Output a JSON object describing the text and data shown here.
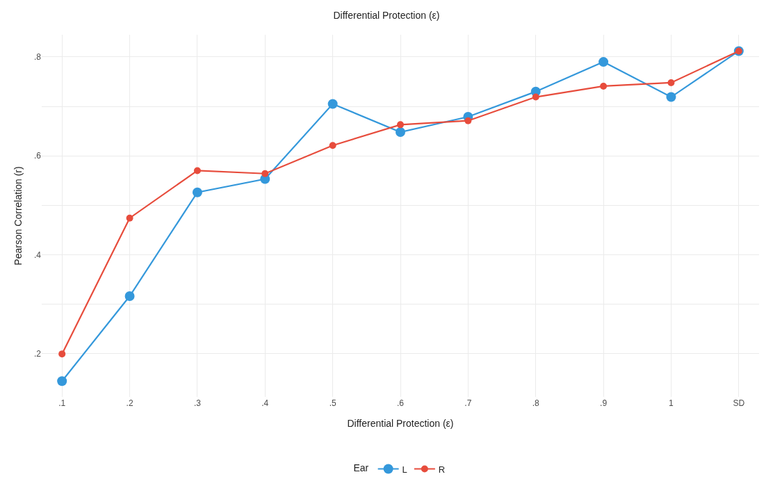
{
  "chart_data": {
    "type": "line",
    "title": "Differential Protection (ε)",
    "xlabel": "Differential Protection (ε)",
    "ylabel": "Pearson Correlation (r)",
    "legend_title": "Ear",
    "categories": [
      ".1",
      ".2",
      ".3",
      ".4",
      ".5",
      ".6",
      ".7",
      ".8",
      ".9",
      "1",
      "SD"
    ],
    "series": [
      {
        "name": "L",
        "color": "#3498db",
        "values": [
          0.144,
          0.316,
          0.526,
          0.553,
          0.705,
          0.648,
          0.679,
          0.73,
          0.79,
          0.719,
          0.812
        ]
      },
      {
        "name": "R",
        "color": "#e74c3c",
        "values": [
          0.199,
          0.474,
          0.57,
          0.564,
          0.621,
          0.663,
          0.671,
          0.719,
          0.741,
          0.748,
          0.812
        ]
      }
    ],
    "ylim": [
      0.112,
      0.845
    ],
    "yticks": [
      {
        "value": 0.2,
        "label": ".2"
      },
      {
        "value": 0.3,
        "label": null
      },
      {
        "value": 0.4,
        "label": ".4"
      },
      {
        "value": 0.5,
        "label": null
      },
      {
        "value": 0.6,
        "label": ".6"
      },
      {
        "value": 0.7,
        "label": null
      },
      {
        "value": 0.8,
        "label": ".8"
      }
    ],
    "grid": true,
    "legend": "bottom",
    "marker": "circle",
    "line_style": "solid"
  }
}
